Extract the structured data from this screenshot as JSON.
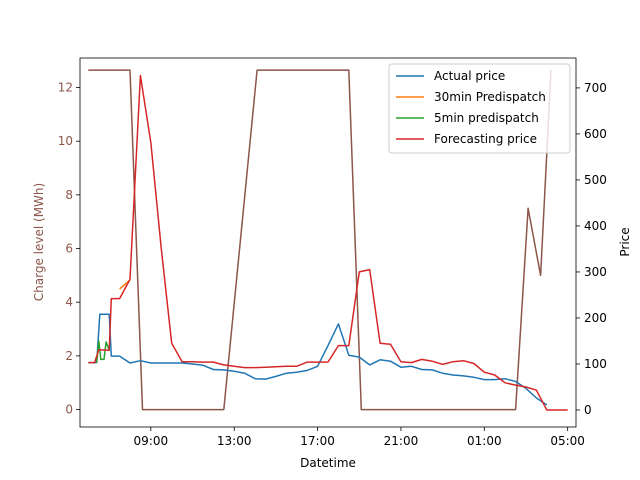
{
  "chart_data": {
    "type": "line",
    "xlabel": "Datetime",
    "ylabel_left": "Charge level (MWh)",
    "ylabel_right": "Price",
    "x_ticks": [
      "09:00",
      "13:00",
      "17:00",
      "21:00",
      "01:00",
      "05:00"
    ],
    "x_tick_hours": [
      9,
      13,
      17,
      21,
      25,
      29
    ],
    "xlim_hours": [
      5.6,
      29.4
    ],
    "left_ylim": [
      -0.65,
      13.1
    ],
    "left_ticks": [
      0,
      2,
      4,
      6,
      8,
      10,
      12
    ],
    "right_ylim": [
      -37,
      765
    ],
    "right_ticks": [
      0,
      100,
      200,
      300,
      400,
      500,
      600,
      700
    ],
    "colors": {
      "actual": "#1f77b4",
      "pd30": "#ff7f0e",
      "pd5": "#2ca02c",
      "forecast": "#d62728",
      "charge": "#8c564b"
    },
    "legend_position": "top-right",
    "legend": [
      "Actual price",
      "30min Predispatch",
      "5min predispatch",
      "Forecasting price"
    ],
    "charge_level": {
      "name": "Charge level",
      "color": "#8c564b",
      "points": [
        [
          6.0,
          12.65
        ],
        [
          8.0,
          12.65
        ],
        [
          8.6,
          0.0
        ],
        [
          12.5,
          0.0
        ],
        [
          14.1,
          12.65
        ],
        [
          18.5,
          12.65
        ],
        [
          19.1,
          0.0
        ],
        [
          26.5,
          0.0
        ],
        [
          27.1,
          7.5
        ],
        [
          27.7,
          5.0
        ],
        [
          28.2,
          12.65
        ]
      ]
    },
    "series": [
      {
        "name": "Actual price",
        "color": "#1f77b4",
        "points": [
          [
            6.0,
            103
          ],
          [
            6.4,
            103
          ],
          [
            6.55,
            208
          ],
          [
            7.0,
            208
          ],
          [
            7.1,
            117
          ],
          [
            7.5,
            117
          ],
          [
            8.0,
            102
          ],
          [
            8.5,
            107
          ],
          [
            9.0,
            102
          ],
          [
            9.5,
            102
          ],
          [
            10.0,
            102
          ],
          [
            10.5,
            102
          ],
          [
            11.0,
            100
          ],
          [
            11.5,
            97
          ],
          [
            12.0,
            88
          ],
          [
            12.5,
            87
          ],
          [
            13.0,
            84
          ],
          [
            13.5,
            80
          ],
          [
            14.0,
            68
          ],
          [
            14.5,
            67
          ],
          [
            15.0,
            73
          ],
          [
            15.5,
            80
          ],
          [
            16.0,
            82
          ],
          [
            16.5,
            86
          ],
          [
            17.0,
            95
          ],
          [
            17.5,
            140
          ],
          [
            18.0,
            187
          ],
          [
            18.5,
            119
          ],
          [
            19.0,
            115
          ],
          [
            19.5,
            98
          ],
          [
            20.0,
            109
          ],
          [
            20.5,
            106
          ],
          [
            21.0,
            93
          ],
          [
            21.5,
            95
          ],
          [
            22.0,
            88
          ],
          [
            22.5,
            87
          ],
          [
            23.0,
            80
          ],
          [
            23.5,
            76
          ],
          [
            24.0,
            74
          ],
          [
            24.5,
            71
          ],
          [
            25.0,
            66
          ],
          [
            25.5,
            66
          ],
          [
            26.0,
            68
          ],
          [
            26.5,
            62
          ],
          [
            27.0,
            47
          ],
          [
            27.5,
            26
          ],
          [
            28.0,
            11
          ]
        ]
      },
      {
        "name": "30min Predispatch",
        "color": "#ff7f0e",
        "points": [
          [
            7.5,
            263
          ],
          [
            8.0,
            282
          ]
        ]
      },
      {
        "name": "5min predispatch",
        "color": "#2ca02c",
        "points": [
          [
            6.4,
            103
          ],
          [
            6.5,
            150
          ],
          [
            6.6,
            110
          ],
          [
            6.75,
            110
          ],
          [
            6.85,
            148
          ],
          [
            7.0,
            130
          ]
        ]
      },
      {
        "name": "Forecasting price",
        "color": "#d62728",
        "points": [
          [
            6.0,
            103
          ],
          [
            6.3,
            103
          ],
          [
            6.5,
            131
          ],
          [
            7.0,
            130
          ],
          [
            7.1,
            242
          ],
          [
            7.5,
            242
          ],
          [
            8.0,
            284
          ],
          [
            8.5,
            727
          ],
          [
            9.0,
            580
          ],
          [
            9.5,
            350
          ],
          [
            10.0,
            145
          ],
          [
            10.5,
            105
          ],
          [
            11.0,
            105
          ],
          [
            11.5,
            104
          ],
          [
            12.0,
            104
          ],
          [
            12.5,
            98
          ],
          [
            13.0,
            95
          ],
          [
            13.5,
            92
          ],
          [
            14.0,
            92
          ],
          [
            14.5,
            93
          ],
          [
            15.0,
            94
          ],
          [
            15.5,
            95
          ],
          [
            16.0,
            95
          ],
          [
            16.5,
            104
          ],
          [
            17.0,
            104
          ],
          [
            17.5,
            104
          ],
          [
            18.0,
            140
          ],
          [
            18.5,
            140
          ],
          [
            19.0,
            300
          ],
          [
            19.5,
            305
          ],
          [
            20.0,
            145
          ],
          [
            20.5,
            143
          ],
          [
            21.0,
            105
          ],
          [
            21.5,
            103
          ],
          [
            22.0,
            110
          ],
          [
            22.5,
            106
          ],
          [
            23.0,
            99
          ],
          [
            23.5,
            105
          ],
          [
            24.0,
            107
          ],
          [
            24.5,
            101
          ],
          [
            25.0,
            82
          ],
          [
            25.5,
            76
          ],
          [
            26.0,
            59
          ],
          [
            26.5,
            54
          ],
          [
            27.0,
            50
          ],
          [
            27.5,
            43
          ],
          [
            28.0,
            0
          ],
          [
            28.5,
            0
          ],
          [
            29.0,
            0
          ]
        ]
      }
    ]
  }
}
